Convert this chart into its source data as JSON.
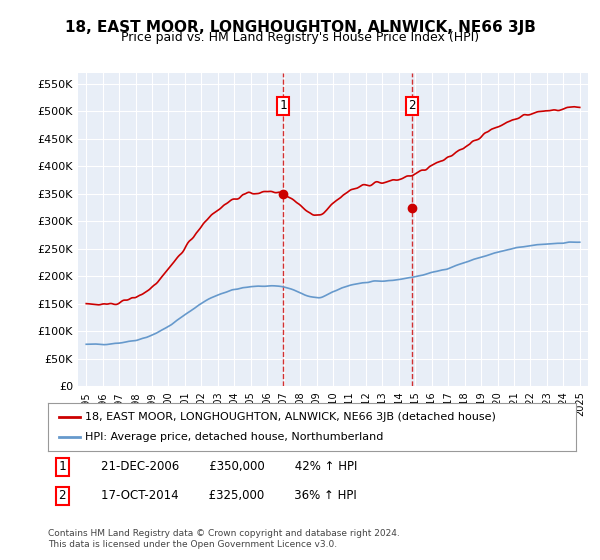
{
  "title": "18, EAST MOOR, LONGHOUGHTON, ALNWICK, NE66 3JB",
  "subtitle": "Price paid vs. HM Land Registry's House Price Index (HPI)",
  "background_color": "#ffffff",
  "plot_bg_color": "#e8eef7",
  "grid_color": "#ffffff",
  "ylim": [
    0,
    570000
  ],
  "yticks": [
    0,
    50000,
    100000,
    150000,
    200000,
    250000,
    300000,
    350000,
    400000,
    450000,
    500000,
    550000
  ],
  "ytick_labels": [
    "£0",
    "£50K",
    "£100K",
    "£150K",
    "£200K",
    "£250K",
    "£300K",
    "£350K",
    "£400K",
    "£450K",
    "£500K",
    "£550K"
  ],
  "sale1_date": 2006.97,
  "sale1_price": 350000,
  "sale1_label": "1",
  "sale2_date": 2014.79,
  "sale2_price": 325000,
  "sale2_label": "2",
  "hpi_color": "#6699cc",
  "price_color": "#cc0000",
  "vline_color": "#cc0000",
  "legend_label_price": "18, EAST MOOR, LONGHOUGHTON, ALNWICK, NE66 3JB (detached house)",
  "legend_label_hpi": "HPI: Average price, detached house, Northumberland",
  "note1": "1   21-DEC-2006        £350,000        42% ↑ HPI",
  "note2": "2   17-OCT-2014        £325,000        36% ↑ HPI",
  "footnote": "Contains HM Land Registry data © Crown copyright and database right 2024.\nThis data is licensed under the Open Government Licence v3.0.",
  "xmin": 1994.5,
  "xmax": 2025.5
}
